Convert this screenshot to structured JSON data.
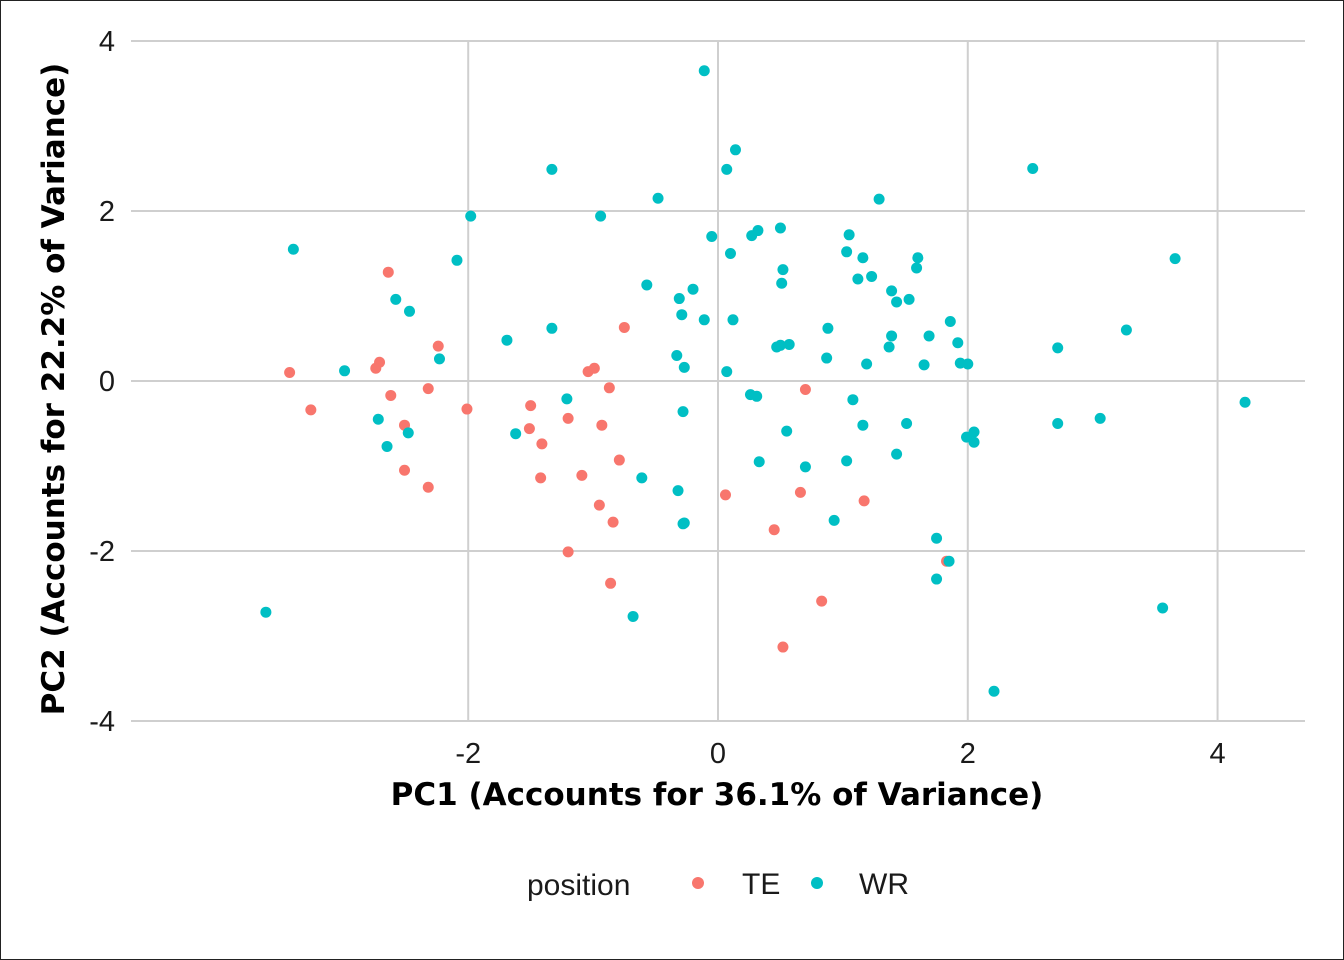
{
  "chart_data": {
    "type": "scatter",
    "xlabel": "PC1 (Accounts for 36.1% of Variance)",
    "ylabel": "PC2 (Accounts for 22.2% of Variance)",
    "xlim": [
      -4.7,
      4.7
    ],
    "ylim": [
      -4.0,
      4.0
    ],
    "x_ticks": [
      -2,
      0,
      2,
      4
    ],
    "y_ticks": [
      -4,
      -2,
      0,
      2,
      4
    ],
    "x_tick_labels": [
      "-2",
      "0",
      "2",
      "4"
    ],
    "y_tick_labels": [
      "-4",
      "-2",
      "0",
      "2",
      "4"
    ],
    "grid": true,
    "legend": {
      "title": "position",
      "placement": "bottom",
      "items": [
        {
          "label": "TE",
          "color": "#F8766D"
        },
        {
          "label": "WR",
          "color": "#00BFC4"
        }
      ]
    },
    "series": [
      {
        "name": "TE",
        "color": "#F8766D",
        "points": [
          [
            -3.43,
            0.1
          ],
          [
            -3.26,
            -0.34
          ],
          [
            -2.64,
            1.28
          ],
          [
            -2.71,
            0.22
          ],
          [
            -2.74,
            0.15
          ],
          [
            -2.62,
            -0.17
          ],
          [
            -2.51,
            -0.52
          ],
          [
            -2.51,
            -1.05
          ],
          [
            -2.32,
            -0.09
          ],
          [
            -2.32,
            -1.25
          ],
          [
            -2.24,
            0.41
          ],
          [
            -2.01,
            -0.33
          ],
          [
            -1.5,
            -0.29
          ],
          [
            -1.51,
            -0.56
          ],
          [
            -1.41,
            -0.74
          ],
          [
            -1.42,
            -1.14
          ],
          [
            -1.2,
            -0.44
          ],
          [
            -1.2,
            -2.01
          ],
          [
            -1.09,
            -1.11
          ],
          [
            -1.04,
            0.11
          ],
          [
            -0.99,
            0.15
          ],
          [
            -0.95,
            -1.46
          ],
          [
            -0.93,
            -0.52
          ],
          [
            -0.87,
            -0.08
          ],
          [
            -0.86,
            -2.38
          ],
          [
            -0.84,
            -1.66
          ],
          [
            -0.79,
            -0.93
          ],
          [
            -0.75,
            0.63
          ],
          [
            0.06,
            -1.34
          ],
          [
            0.45,
            -1.75
          ],
          [
            0.52,
            -3.13
          ],
          [
            0.66,
            -1.31
          ],
          [
            0.7,
            -0.1
          ],
          [
            0.83,
            -2.59
          ],
          [
            1.17,
            -1.41
          ],
          [
            1.83,
            -2.12
          ]
        ]
      },
      {
        "name": "WR",
        "color": "#00BFC4",
        "points": [
          [
            -3.62,
            -2.72
          ],
          [
            -3.4,
            1.55
          ],
          [
            -2.99,
            0.12
          ],
          [
            -2.72,
            -0.45
          ],
          [
            -2.65,
            -0.77
          ],
          [
            -2.58,
            0.96
          ],
          [
            -2.48,
            -0.61
          ],
          [
            -2.47,
            0.82
          ],
          [
            -2.23,
            0.26
          ],
          [
            -2.09,
            1.42
          ],
          [
            -1.98,
            1.94
          ],
          [
            -1.69,
            0.48
          ],
          [
            -1.62,
            -0.62
          ],
          [
            -1.33,
            2.49
          ],
          [
            -1.33,
            0.62
          ],
          [
            -1.21,
            -0.21
          ],
          [
            -0.94,
            1.94
          ],
          [
            -0.68,
            -2.77
          ],
          [
            -0.61,
            -1.14
          ],
          [
            -0.57,
            1.13
          ],
          [
            -0.48,
            2.15
          ],
          [
            -0.33,
            0.3
          ],
          [
            -0.32,
            -1.29
          ],
          [
            -0.31,
            0.97
          ],
          [
            -0.29,
            0.78
          ],
          [
            -0.28,
            -0.36
          ],
          [
            -0.27,
            0.16
          ],
          [
            -0.27,
            -1.67
          ],
          [
            -0.28,
            -1.68
          ],
          [
            -0.2,
            1.08
          ],
          [
            -0.11,
            3.65
          ],
          [
            -0.11,
            0.72
          ],
          [
            -0.05,
            1.7
          ],
          [
            0.07,
            2.49
          ],
          [
            0.07,
            0.11
          ],
          [
            0.1,
            1.5
          ],
          [
            0.12,
            0.72
          ],
          [
            0.14,
            2.72
          ],
          [
            0.26,
            -0.16
          ],
          [
            0.27,
            1.71
          ],
          [
            0.31,
            -0.18
          ],
          [
            0.32,
            1.77
          ],
          [
            0.33,
            -0.95
          ],
          [
            0.47,
            0.4
          ],
          [
            0.5,
            0.42
          ],
          [
            0.5,
            1.8
          ],
          [
            0.51,
            1.15
          ],
          [
            0.52,
            1.31
          ],
          [
            0.55,
            -0.59
          ],
          [
            0.57,
            0.43
          ],
          [
            0.87,
            0.27
          ],
          [
            0.88,
            0.62
          ],
          [
            0.7,
            -1.01
          ],
          [
            0.93,
            -1.64
          ],
          [
            1.03,
            1.52
          ],
          [
            1.03,
            -0.94
          ],
          [
            1.05,
            1.72
          ],
          [
            1.08,
            -0.22
          ],
          [
            1.12,
            1.2
          ],
          [
            1.16,
            1.45
          ],
          [
            1.16,
            -0.52
          ],
          [
            1.19,
            0.2
          ],
          [
            1.23,
            1.23
          ],
          [
            1.29,
            2.14
          ],
          [
            1.37,
            0.4
          ],
          [
            1.39,
            0.53
          ],
          [
            1.39,
            1.06
          ],
          [
            1.43,
            0.93
          ],
          [
            1.43,
            -0.86
          ],
          [
            1.51,
            -0.5
          ],
          [
            1.53,
            0.96
          ],
          [
            1.6,
            1.45
          ],
          [
            1.59,
            1.33
          ],
          [
            1.65,
            0.19
          ],
          [
            1.69,
            0.53
          ],
          [
            1.75,
            -1.85
          ],
          [
            1.75,
            -2.33
          ],
          [
            1.85,
            -2.12
          ],
          [
            1.86,
            0.7
          ],
          [
            1.92,
            0.45
          ],
          [
            1.94,
            0.21
          ],
          [
            2.0,
            0.2
          ],
          [
            1.99,
            -0.66
          ],
          [
            2.05,
            -0.72
          ],
          [
            2.05,
            -0.6
          ],
          [
            2.21,
            -3.65
          ],
          [
            2.52,
            2.5
          ],
          [
            2.72,
            0.39
          ],
          [
            2.72,
            -0.5
          ],
          [
            3.06,
            -0.44
          ],
          [
            3.27,
            0.6
          ],
          [
            3.56,
            -2.67
          ],
          [
            3.66,
            1.44
          ],
          [
            4.22,
            -0.25
          ]
        ]
      }
    ]
  }
}
